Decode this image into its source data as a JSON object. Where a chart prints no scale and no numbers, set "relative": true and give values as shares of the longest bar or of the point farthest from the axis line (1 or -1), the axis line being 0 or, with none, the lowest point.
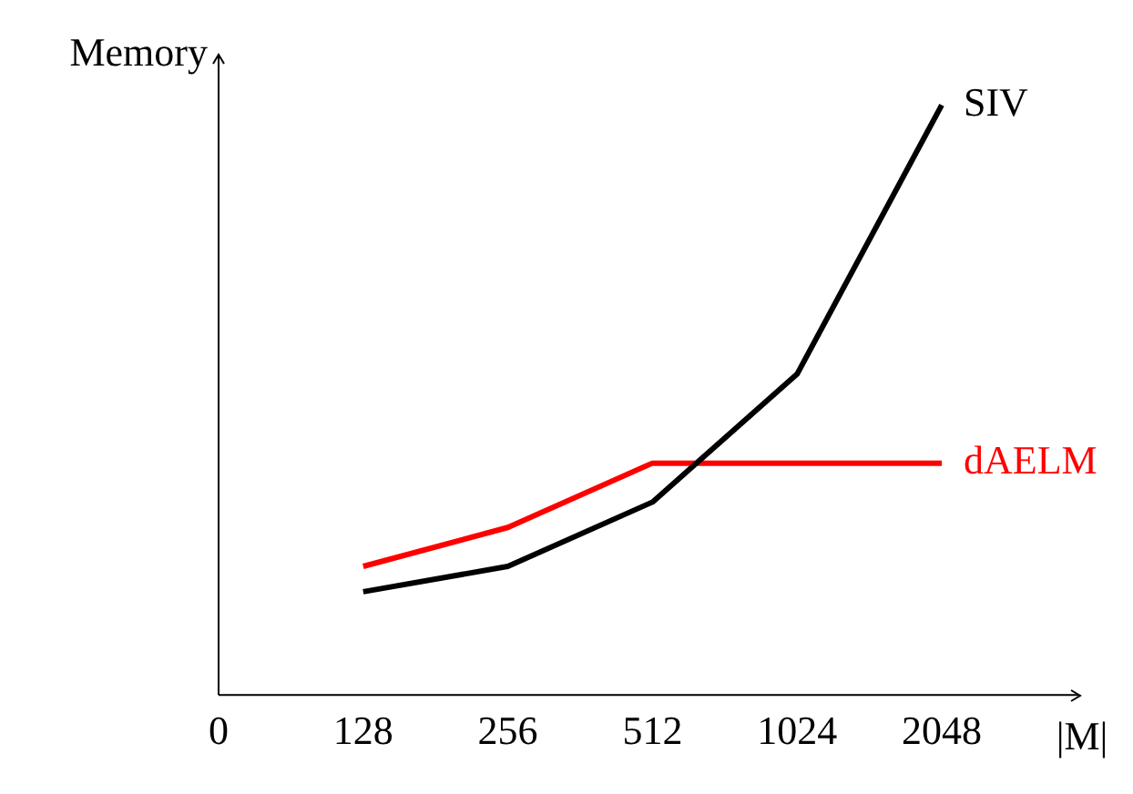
{
  "chart_data": {
    "type": "line",
    "relative": true,
    "xlabel": "|M|",
    "ylabel": "Memory",
    "categories": [
      "0",
      "128",
      "256",
      "512",
      "1024",
      "2048"
    ],
    "series": [
      {
        "name": "SIV",
        "color": "#000000",
        "values": [
          null,
          0.175,
          0.218,
          0.327,
          0.544,
          1
        ]
      },
      {
        "name": "dAELM",
        "color": "#ff0000",
        "values": [
          null,
          0.218,
          0.284,
          0.393,
          0.393,
          0.393
        ]
      }
    ]
  }
}
